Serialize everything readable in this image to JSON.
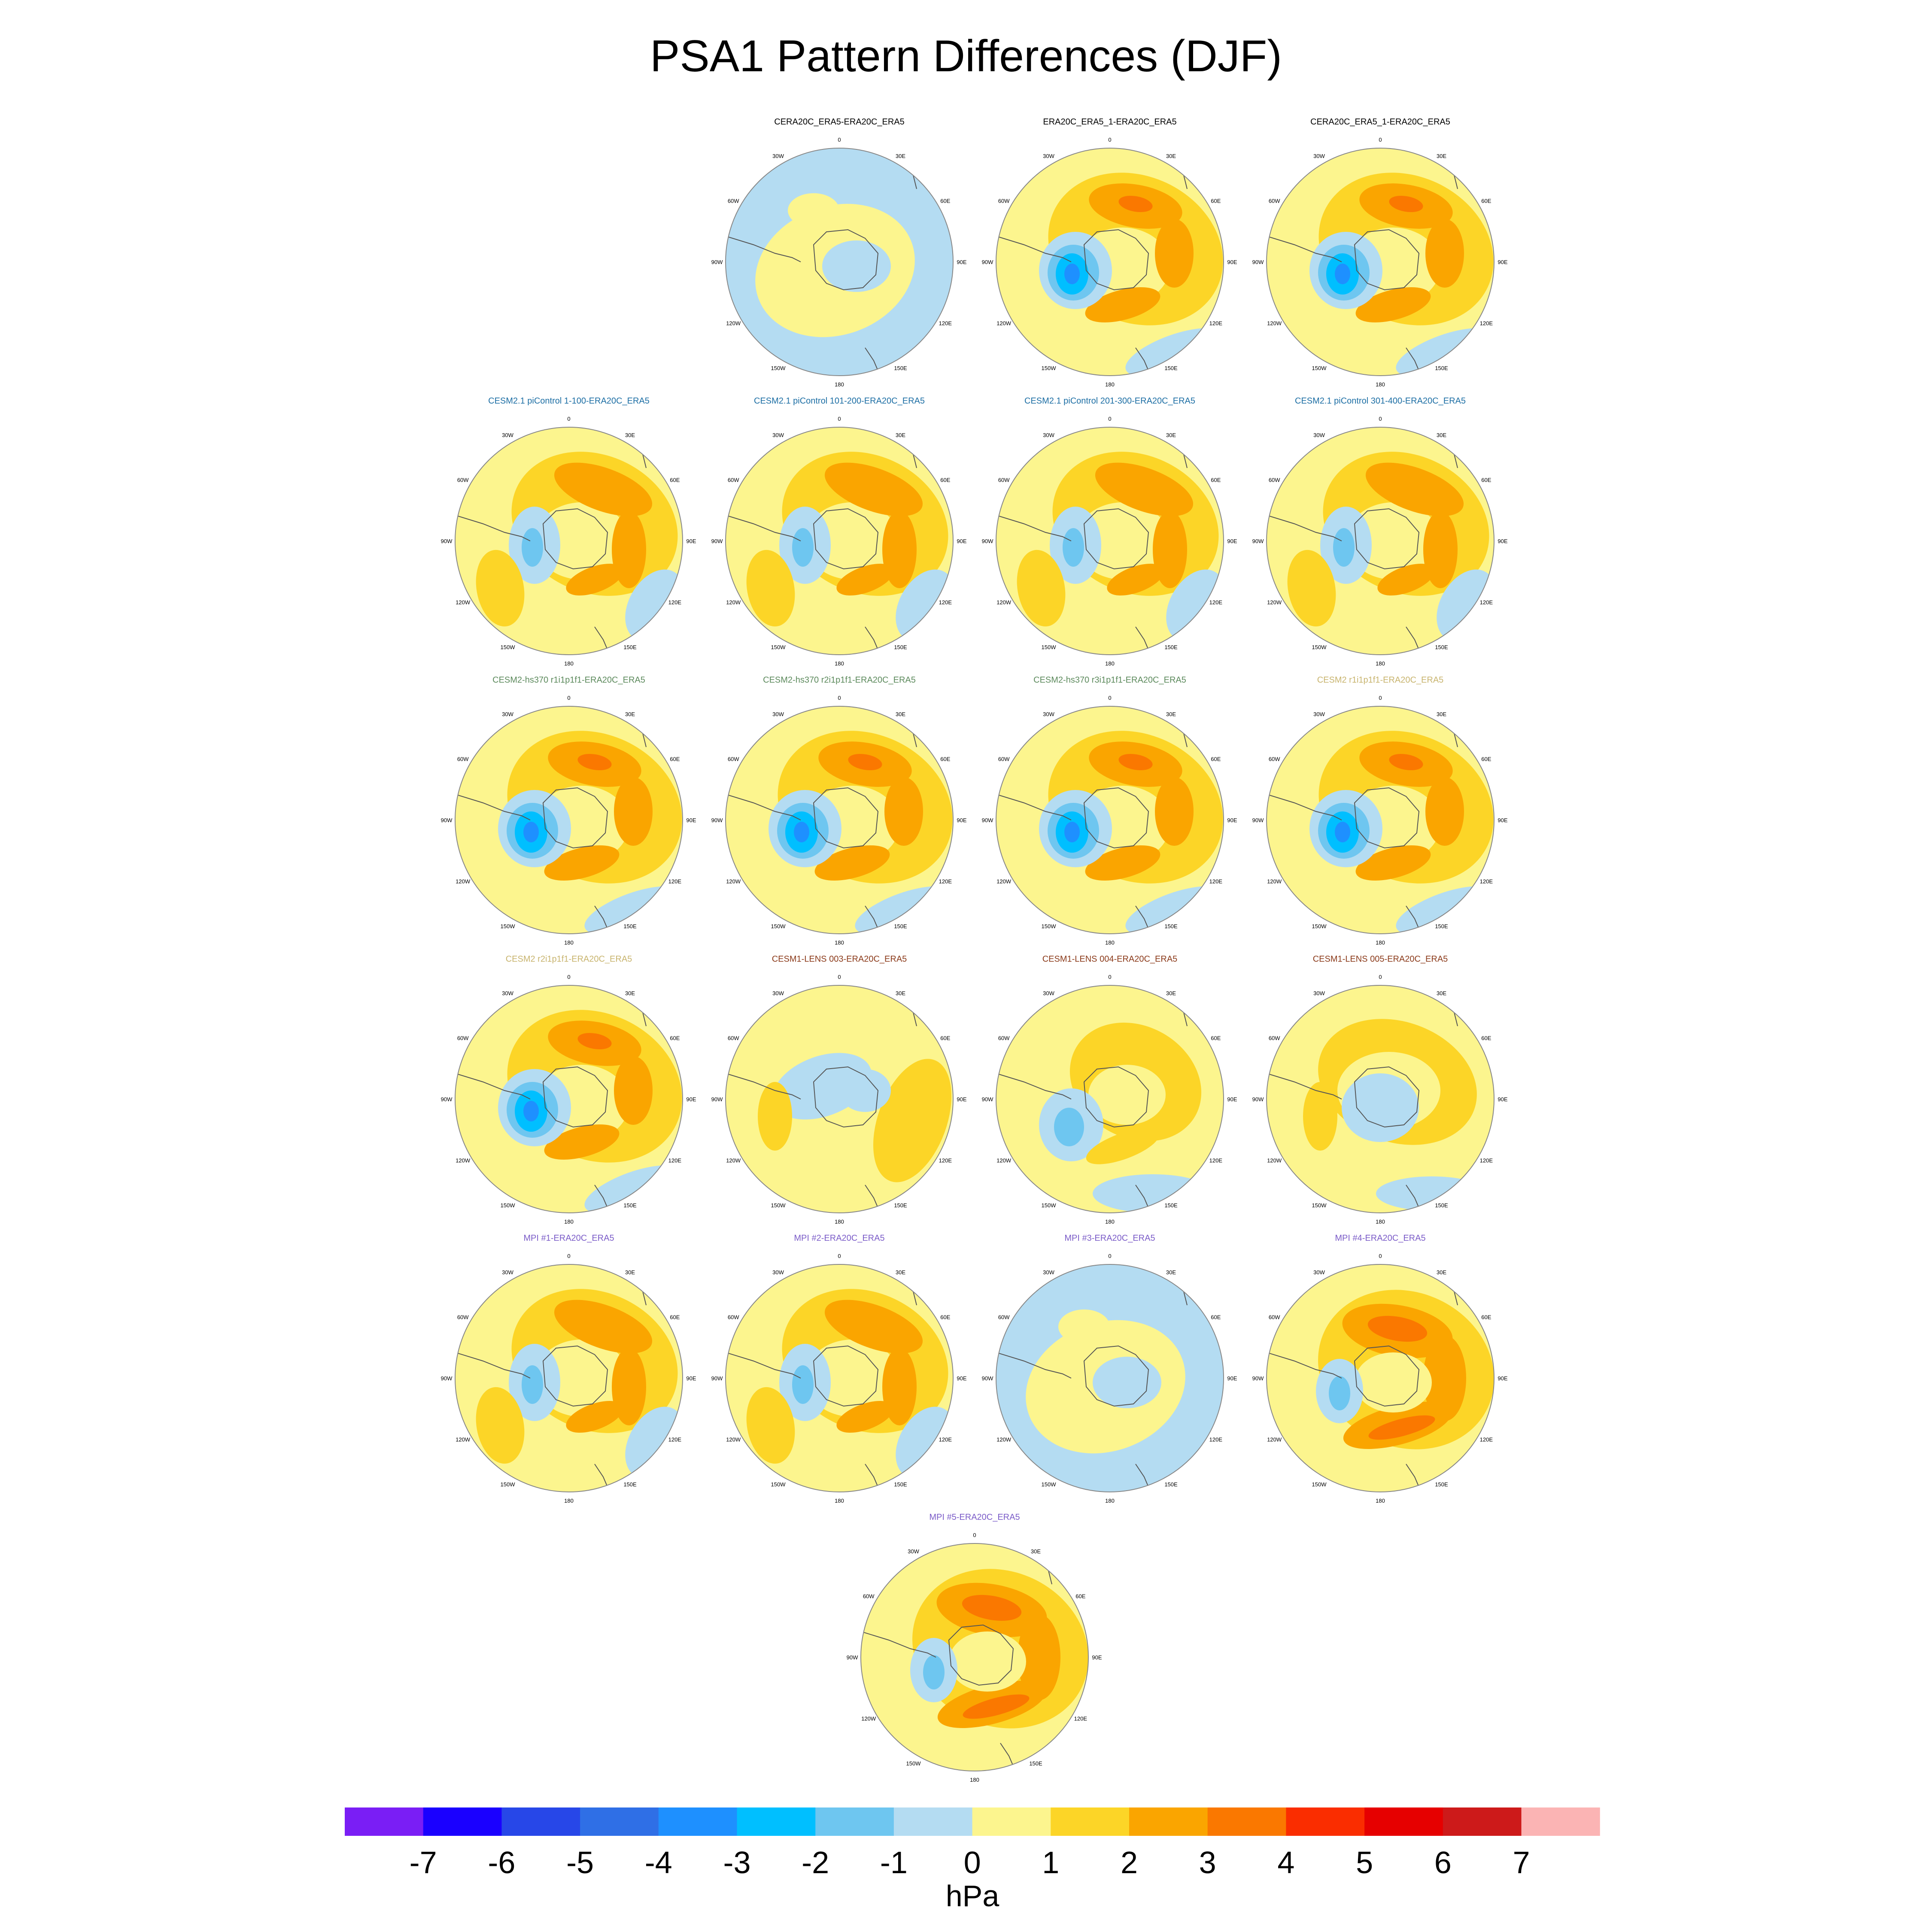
{
  "title": "PSA1 Pattern Differences (DJF)",
  "colors": {
    "land_border": "#555555",
    "circle_border": "#888888",
    "palette": [
      "#7a1ef5",
      "#1a00ff",
      "#2747e8",
      "#2f6fe6",
      "#1e90ff",
      "#00bfff",
      "#6ec6f0",
      "#b4dcf2",
      "#fcf58e",
      "#fcd527",
      "#faa500",
      "#fa7800",
      "#fa2d00",
      "#e60000",
      "#cd1a1a",
      "#fbb4b4"
    ]
  },
  "longitude_labels": [
    "0",
    "30E",
    "60E",
    "90E",
    "120E",
    "150E",
    "180",
    "150W",
    "120W",
    "90W",
    "60W",
    "30W"
  ],
  "colorbar": {
    "ticks": [
      "-7",
      "-6",
      "-5",
      "-4",
      "-3",
      "-2",
      "-1",
      "0",
      "1",
      "2",
      "3",
      "4",
      "5",
      "6",
      "7"
    ],
    "units": "hPa"
  },
  "panels": [
    {
      "title": "CERA20C_ERA5-ERA20C_ERA5",
      "title_color": "#000000",
      "pattern": "weak"
    },
    {
      "title": "ERA20C_ERA5_1-ERA20C_ERA5",
      "title_color": "#000000",
      "pattern": "wave_strong_blue"
    },
    {
      "title": "CERA20C_ERA5_1-ERA20C_ERA5",
      "title_color": "#000000",
      "pattern": "wave_strong_blue"
    },
    {
      "title": "CESM2.1 piControl 1-100-ERA20C_ERA5",
      "title_color": "#1c6ea4",
      "pattern": "wave_mid"
    },
    {
      "title": "CESM2.1 piControl 101-200-ERA20C_ERA5",
      "title_color": "#1c6ea4",
      "pattern": "wave_mid"
    },
    {
      "title": "CESM2.1 piControl 201-300-ERA20C_ERA5",
      "title_color": "#1c6ea4",
      "pattern": "wave_mid"
    },
    {
      "title": "CESM2.1 piControl 301-400-ERA20C_ERA5",
      "title_color": "#1c6ea4",
      "pattern": "wave_mid"
    },
    {
      "title": "CESM2-hs370 r1i1p1f1-ERA20C_ERA5",
      "title_color": "#5c8a5c",
      "pattern": "wave_strong_blue"
    },
    {
      "title": "CESM2-hs370 r2i1p1f1-ERA20C_ERA5",
      "title_color": "#5c8a5c",
      "pattern": "wave_strong_blue"
    },
    {
      "title": "CESM2-hs370 r3i1p1f1-ERA20C_ERA5",
      "title_color": "#5c8a5c",
      "pattern": "wave_strong_blue"
    },
    {
      "title": "CESM2 r1i1p1f1-ERA20C_ERA5",
      "title_color": "#c8b46e",
      "pattern": "wave_strong_blue"
    },
    {
      "title": "CESM2 r2i1p1f1-ERA20C_ERA5",
      "title_color": "#c8b46e",
      "pattern": "wave_strong_blue"
    },
    {
      "title": "CESM1-LENS 003-ERA20C_ERA5",
      "title_color": "#8b3a1a",
      "pattern": "weak_yellow"
    },
    {
      "title": "CESM1-LENS 004-ERA20C_ERA5",
      "title_color": "#8b3a1a",
      "pattern": "wave_light"
    },
    {
      "title": "CESM1-LENS 005-ERA20C_ERA5",
      "title_color": "#8b3a1a",
      "pattern": "weak_ring"
    },
    {
      "title": "MPI #1-ERA20C_ERA5",
      "title_color": "#7b5cc8",
      "pattern": "wave_mid"
    },
    {
      "title": "MPI #2-ERA20C_ERA5",
      "title_color": "#7b5cc8",
      "pattern": "wave_mid"
    },
    {
      "title": "MPI #3-ERA20C_ERA5",
      "title_color": "#7b5cc8",
      "pattern": "weak"
    },
    {
      "title": "MPI #4-ERA20C_ERA5",
      "title_color": "#7b5cc8",
      "pattern": "wave_orange"
    },
    {
      "title": "MPI #5-ERA20C_ERA5",
      "title_color": "#7b5cc8",
      "pattern": "wave_orange"
    }
  ]
}
